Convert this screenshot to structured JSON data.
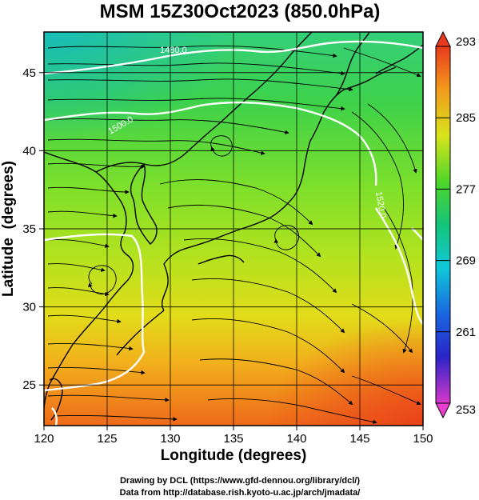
{
  "title": "MSM 15Z30Oct2023 (850.0hPa)",
  "chart_data": {
    "type": "map",
    "xlabel": "Longitude (degrees)",
    "ylabel": "Latitude  (degrees)",
    "xlim": [
      120,
      150
    ],
    "ylim": [
      22.4,
      47.6
    ],
    "xticks": [
      "120",
      "125",
      "130",
      "135",
      "140",
      "145",
      "150"
    ],
    "yticks": [
      "25",
      "30",
      "35",
      "40",
      "45"
    ],
    "xtick_values": [
      120,
      125,
      130,
      135,
      140,
      145,
      150
    ],
    "ytick_values": [
      25,
      30,
      35,
      40,
      45
    ],
    "grid": true,
    "colorbar": {
      "min": 253,
      "max": 293,
      "ticks": [
        "293",
        "285",
        "277",
        "269",
        "261",
        "253"
      ],
      "tick_values": [
        293,
        285,
        277,
        269,
        261,
        253
      ]
    },
    "contours": [
      {
        "label": "1480.0"
      },
      {
        "label": "1500.0"
      },
      {
        "label": "1520.0"
      }
    ]
  },
  "credits": {
    "line1": "Drawing by DCL (https://www.gfd-dennou.org/library/dcl/)",
    "line2": "Data from http://database.rish.kyoto-u.ac.jp/arch/jmadata/"
  }
}
